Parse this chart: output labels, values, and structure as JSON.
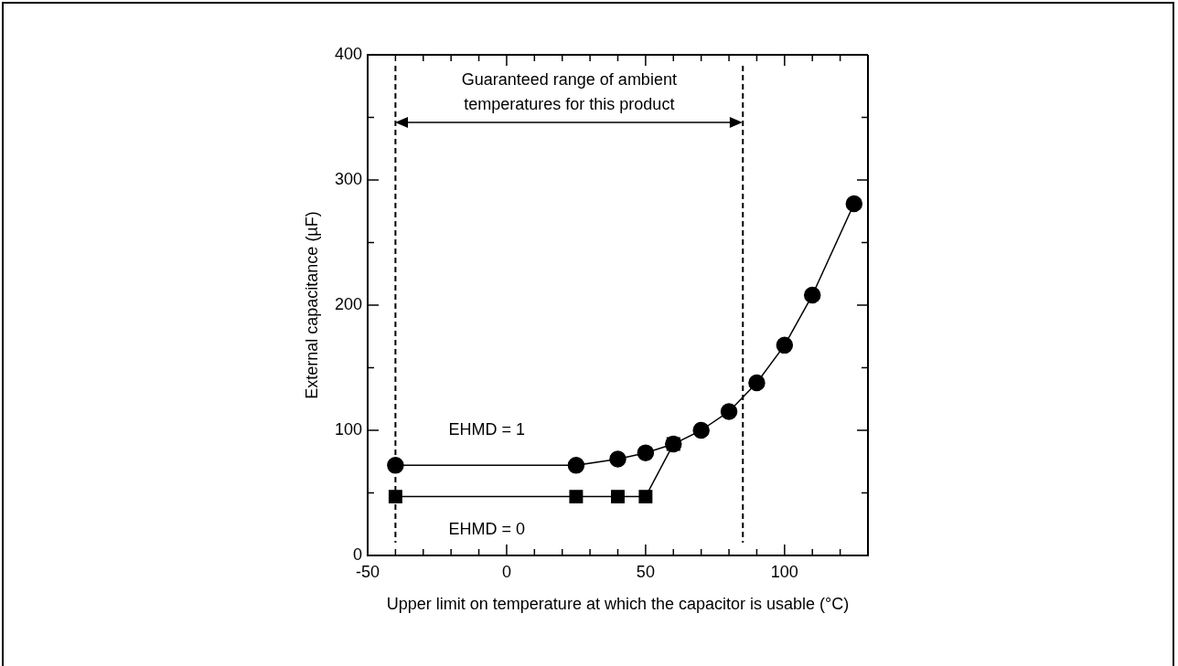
{
  "chart_data": {
    "type": "line",
    "xlabel": "Upper limit on temperature at which the capacitor is usable (°C)",
    "ylabel": "External capacitance (µF)",
    "xlim": [
      -50,
      130
    ],
    "xticks": [
      -50,
      {
        "value": -40,
        "label": null
      },
      {
        "value": -30,
        "label": null
      },
      {
        "value": -20,
        "label": null
      },
      {
        "value": -10,
        "label": null
      },
      0,
      {
        "value": 10,
        "label": null
      },
      {
        "value": 20,
        "label": null
      },
      {
        "value": 30,
        "label": null
      },
      {
        "value": 40,
        "label": null
      },
      50,
      {
        "value": 60,
        "label": null
      },
      {
        "value": 70,
        "label": null
      },
      {
        "value": 80,
        "label": null
      },
      {
        "value": 90,
        "label": null
      },
      100,
      {
        "value": 110,
        "label": null
      },
      {
        "value": 120,
        "label": null
      }
    ],
    "ylim": [
      0,
      400
    ],
    "yticks": [
      0,
      {
        "value": 50,
        "label": null
      },
      100,
      {
        "value": 150,
        "label": null
      },
      200,
      {
        "value": 250,
        "label": null
      },
      300,
      {
        "value": 350,
        "label": null
      },
      400
    ],
    "series": [
      {
        "name": "EHMD = 1",
        "color": "#000000",
        "marker": "circle",
        "x": [
          -40,
          25,
          40,
          50,
          60,
          70,
          80,
          90,
          100,
          110,
          125
        ],
        "values": [
          72,
          72,
          77,
          82,
          89,
          100,
          115,
          138,
          168,
          208,
          281
        ]
      },
      {
        "name": "EHMD = 0",
        "color": "#000000",
        "marker": "square",
        "x": [
          -40,
          25,
          40,
          50,
          60
        ],
        "values": [
          47,
          47,
          47,
          47,
          89
        ]
      }
    ],
    "ref_lines": [
      {
        "axis": "x",
        "value": -40,
        "line_style": "dashed"
      },
      {
        "axis": "x",
        "value": 85,
        "line_style": "dashed"
      }
    ],
    "annotations": [
      "Guaranteed range of ambient temperatures for this product"
    ],
    "line_style": "solid",
    "grid": false,
    "legend": false
  }
}
